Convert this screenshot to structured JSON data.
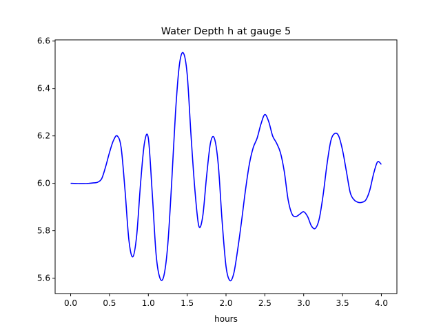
{
  "chart_data": {
    "type": "line",
    "title": "Water Depth h at gauge 5",
    "xlabel": "hours",
    "ylabel": "",
    "xlim": [
      -0.2,
      4.2
    ],
    "ylim": [
      5.535,
      6.605
    ],
    "xticks": [
      0.0,
      0.5,
      1.0,
      1.5,
      2.0,
      2.5,
      3.0,
      3.5,
      4.0
    ],
    "xtick_labels": [
      "0.0",
      "0.5",
      "1.0",
      "1.5",
      "2.0",
      "2.5",
      "3.0",
      "3.5",
      "4.0"
    ],
    "yticks": [
      5.6,
      5.8,
      6.0,
      6.2,
      6.4,
      6.6
    ],
    "ytick_labels": [
      "5.6",
      "5.8",
      "6.0",
      "6.2",
      "6.4",
      "6.6"
    ],
    "grid": false,
    "series": [
      {
        "color": "#0000ff",
        "x": [
          0.0,
          0.1,
          0.2,
          0.3,
          0.35,
          0.4,
          0.45,
          0.5,
          0.55,
          0.6,
          0.65,
          0.7,
          0.75,
          0.8,
          0.85,
          0.9,
          0.95,
          1.0,
          1.05,
          1.1,
          1.15,
          1.2,
          1.25,
          1.3,
          1.35,
          1.4,
          1.45,
          1.5,
          1.55,
          1.6,
          1.65,
          1.7,
          1.75,
          1.8,
          1.85,
          1.9,
          1.95,
          2.0,
          2.05,
          2.1,
          2.15,
          2.2,
          2.25,
          2.3,
          2.35,
          2.4,
          2.45,
          2.5,
          2.55,
          2.6,
          2.65,
          2.7,
          2.75,
          2.8,
          2.85,
          2.9,
          2.95,
          3.0,
          3.05,
          3.1,
          3.15,
          3.2,
          3.25,
          3.3,
          3.35,
          3.4,
          3.45,
          3.5,
          3.55,
          3.6,
          3.65,
          3.7,
          3.75,
          3.8,
          3.85,
          3.9,
          3.95,
          4.0
        ],
        "y": [
          6.0,
          5.999,
          5.999,
          6.002,
          6.005,
          6.02,
          6.07,
          6.13,
          6.18,
          6.2,
          6.15,
          5.97,
          5.76,
          5.69,
          5.78,
          6.0,
          6.17,
          6.19,
          5.96,
          5.7,
          5.6,
          5.61,
          5.74,
          6.0,
          6.3,
          6.5,
          6.55,
          6.46,
          6.2,
          5.97,
          5.82,
          5.86,
          6.03,
          6.17,
          6.19,
          6.08,
          5.84,
          5.65,
          5.59,
          5.62,
          5.72,
          5.84,
          5.97,
          6.08,
          6.15,
          6.19,
          6.25,
          6.29,
          6.26,
          6.2,
          6.17,
          6.13,
          6.05,
          5.93,
          5.87,
          5.86,
          5.87,
          5.88,
          5.86,
          5.82,
          5.81,
          5.85,
          5.95,
          6.08,
          6.18,
          6.21,
          6.2,
          6.14,
          6.05,
          5.96,
          5.93,
          5.92,
          5.92,
          5.93,
          5.97,
          6.04,
          6.09,
          6.08
        ]
      }
    ]
  }
}
